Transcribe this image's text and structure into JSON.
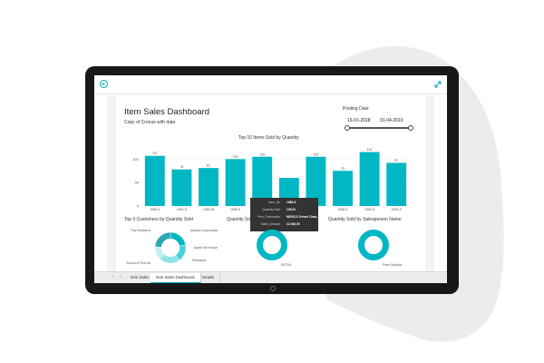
{
  "theme": {
    "accent": "#00b7c3",
    "background_blob": "#ececed",
    "device_bezel": "#181818"
  },
  "topbar": {
    "back_icon": "arrow-left-icon",
    "expand_icon": "expand-icon"
  },
  "dashboard": {
    "title": "Item Sales Dashboard",
    "subtitle": "Copy of Cronus with data",
    "posting_date": {
      "label": "Posting Date",
      "start": "16-01-2018",
      "end": "01-04-2019"
    }
  },
  "chart_data": [
    {
      "type": "bar",
      "title": "Top 10 Items Sold by Quantity",
      "categories": [
        "1968-S",
        "1964-S",
        "1960-W",
        "1968-S",
        "",
        "",
        "",
        "1988-S",
        "1964-S",
        "2000-S"
      ],
      "values": [
        107,
        78,
        81,
        100,
        105,
        60,
        105,
        75,
        115,
        92
      ],
      "data_labels": [
        "107",
        "78",
        "81",
        "100",
        "105",
        "",
        "105",
        "75",
        "115",
        "92"
      ],
      "ylim": [
        0,
        120
      ],
      "yticks": [
        "100",
        "50",
        "0"
      ],
      "grid": true
    },
    {
      "type": "pie",
      "title": "Top 5 Customers by Quantity Sold",
      "donut": true,
      "labels": [
        "Trey Research",
        "Adatum Corporation",
        "Alpine Ski House",
        "Relecloud",
        "School of Fine Art"
      ],
      "values": [
        22,
        18,
        22,
        14,
        24
      ]
    },
    {
      "type": "pie",
      "title": "Quantity Sold after Sales by Posting Group",
      "donut": true,
      "labels": [
        "RETAIL"
      ],
      "values": [
        100
      ]
    },
    {
      "type": "pie",
      "title": "Quantity Sold by Salesperson Name",
      "donut": true,
      "labels": [
        "Peter Saddow"
      ],
      "values": [
        100
      ]
    }
  ],
  "tooltip": {
    "rows": [
      {
        "key": "Item_No",
        "value": "1968-S"
      },
      {
        "key": "Quantity Sold",
        "value": "105,00"
      },
      {
        "key": "Item_Description",
        "value": "MEXICO Swivel Chair, black"
      },
      {
        "key": "Sales_Amount",
        "value": "12.946,50"
      }
    ]
  },
  "tabs": {
    "items": [
      {
        "label": "Item Sales"
      },
      {
        "label": "Item Sales Dashboard"
      },
      {
        "label": "Details"
      }
    ]
  }
}
